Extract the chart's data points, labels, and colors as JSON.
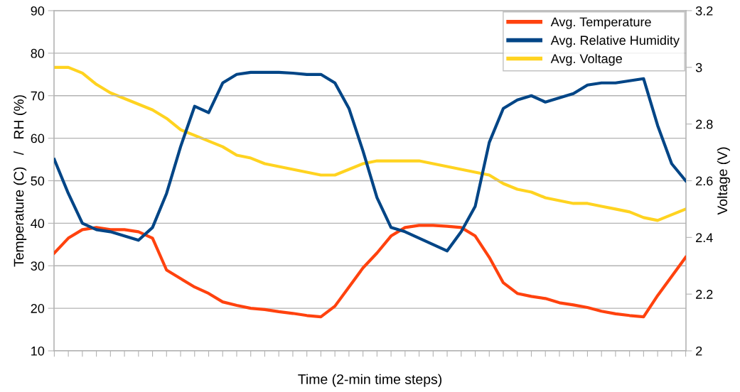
{
  "chart_data": {
    "type": "line",
    "xlabel": "Time (2-min time steps)",
    "ylabel": "Temperature (C)   /   RH (%)",
    "y2label": "Voltage (V)",
    "categories": [
      null,
      null,
      null,
      null,
      null,
      null,
      null,
      null,
      null,
      null,
      null,
      null,
      null,
      null,
      null,
      null,
      null,
      null,
      null,
      null,
      null,
      null,
      null,
      null,
      null,
      null,
      null,
      null,
      null,
      null,
      null,
      null,
      null,
      null,
      null,
      null,
      null,
      null,
      null,
      null,
      null,
      null,
      null,
      null,
      null,
      null
    ],
    "series": [
      {
        "name": "Avg. Temperature",
        "color": "#ff420e",
        "values": [
          33,
          36.5,
          38.5,
          39,
          38.5,
          38.5,
          38,
          36.5,
          29,
          27,
          25,
          23.5,
          21.5,
          20.7,
          20,
          19.7,
          19.2,
          18.8,
          18.3,
          18,
          20.5,
          25,
          29.5,
          33,
          37,
          39,
          39.5,
          39.5,
          39.3,
          39,
          37,
          32,
          26,
          23.5,
          22.8,
          22.3,
          21.3,
          20.8,
          20.2,
          19.3,
          18.7,
          18.3,
          18,
          23,
          27.5,
          32
        ]
      },
      {
        "name": "Avg. Relative Humidity",
        "color": "#004586",
        "values": [
          55,
          47,
          40,
          38.5,
          38,
          37,
          36,
          39,
          47,
          58,
          67.5,
          66,
          73,
          75,
          75.5,
          75.5,
          75.5,
          75.3,
          75,
          75,
          73,
          67,
          57,
          46,
          39,
          38,
          36.5,
          35,
          33.5,
          38,
          44,
          59,
          67,
          69,
          70,
          68.5,
          69.5,
          70.5,
          72.5,
          73,
          73,
          73.5,
          74,
          63,
          54,
          50
        ]
      },
      {
        "name": "Avg. Voltage",
        "color": "#ffd320",
        "axis": "y2",
        "values": [
          3.0,
          3.0,
          2.98,
          2.94,
          2.91,
          2.89,
          2.87,
          2.85,
          2.82,
          2.78,
          2.76,
          2.74,
          2.72,
          2.69,
          2.68,
          2.66,
          2.65,
          2.64,
          2.63,
          2.62,
          2.62,
          2.64,
          2.66,
          2.67,
          2.67,
          2.67,
          2.67,
          2.66,
          2.65,
          2.64,
          2.63,
          2.62,
          2.59,
          2.57,
          2.56,
          2.54,
          2.53,
          2.52,
          2.52,
          2.51,
          2.5,
          2.49,
          2.47,
          2.46,
          2.48,
          2.5
        ]
      }
    ],
    "ylim": [
      10,
      90
    ],
    "yticks": [
      10,
      20,
      30,
      40,
      50,
      60,
      70,
      80,
      90
    ],
    "y2lim": [
      2,
      3.2
    ],
    "y2ticks": [
      {
        "value": 2,
        "label": "2"
      },
      {
        "value": 2.2,
        "label": "2.2"
      },
      {
        "value": 2.4,
        "label": "2.4"
      },
      {
        "value": 2.6,
        "label": "2.6"
      },
      {
        "value": 2.8,
        "label": "2.8"
      },
      {
        "value": 3,
        "label": "3"
      },
      {
        "value": 3.2,
        "label": "3.2"
      }
    ],
    "grid": "y",
    "legend": "top right",
    "marker": "none",
    "line_style": "solid"
  }
}
